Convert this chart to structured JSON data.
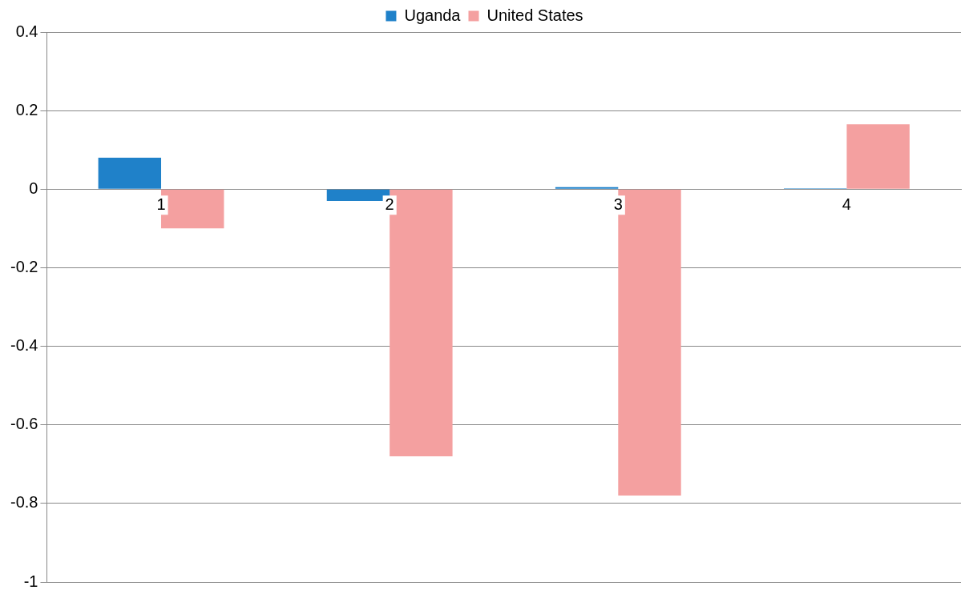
{
  "chart_data": {
    "type": "bar",
    "categories": [
      "1",
      "2",
      "3",
      "4"
    ],
    "series": [
      {
        "name": "Uganda",
        "color": "#1f81c9",
        "values": [
          0.08,
          -0.03,
          0.005,
          0.002
        ]
      },
      {
        "name": "United States",
        "color": "#f4a0a0",
        "values": [
          -0.1,
          -0.68,
          -0.78,
          0.165
        ]
      }
    ],
    "ylim": [
      -1,
      0.4
    ],
    "yticks": [
      -1,
      -0.8,
      -0.6,
      -0.4,
      -0.2,
      0,
      0.2,
      0.4
    ],
    "grid": "y",
    "legend": "top"
  }
}
